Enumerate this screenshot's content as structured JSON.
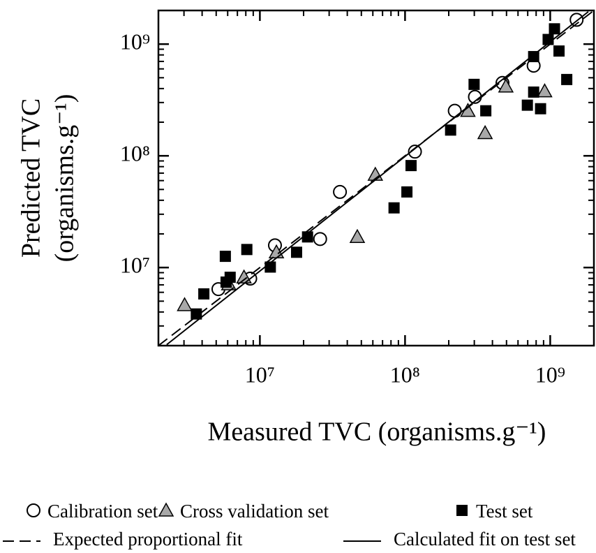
{
  "chart_data": {
    "type": "scatter",
    "xlabel": "Measured TVC (organisms.g⁻¹)",
    "ylabel": [
      "Predicted TVC",
      "(organisms.g⁻¹)"
    ],
    "xlog": true,
    "ylog": true,
    "xlim": [
      2000000,
      2000000000
    ],
    "ylim": [
      2000000,
      2000000000
    ],
    "xticks": [
      {
        "value": 10000000,
        "label": "10⁷"
      },
      {
        "value": 100000000,
        "label": "10⁸"
      },
      {
        "value": 1000000000,
        "label": "10⁹"
      }
    ],
    "yticks": [
      {
        "value": 10000000,
        "label": "10⁷"
      },
      {
        "value": 100000000,
        "label": "10⁸"
      },
      {
        "value": 1000000000,
        "label": "10⁹"
      }
    ],
    "legend": "bottom",
    "series": [
      {
        "name": "Calibration set",
        "marker": "circle",
        "color": "#ffffff",
        "x": [
          5180000,
          8580000,
          12700000,
          26000000,
          35600000,
          117000000,
          220000000,
          303000000,
          469000000,
          769000000,
          1520000000
        ],
        "values": [
          6410000,
          7960000,
          15800000,
          18000000,
          47500000,
          109000000,
          253000000,
          337000000,
          449000000,
          641000000,
          1650000000
        ]
      },
      {
        "name": "Cross validation set",
        "marker": "triangle",
        "color": "#a8a8a8",
        "x": [
          3030000,
          6100000,
          7770000,
          13000000,
          46900000,
          62400000,
          271000000,
          356000000,
          495000000,
          916000000
        ],
        "values": [
          4620000,
          7100000,
          8180000,
          13700000,
          18800000,
          67900000,
          253000000,
          160000000,
          418000000,
          379000000
        ]
      },
      {
        "name": "Test set",
        "marker": "square",
        "color": "#000000",
        "x": [
          3650000,
          4110000,
          5850000,
          5780000,
          6240000,
          8130000,
          11800000,
          17900000,
          21300000,
          84000000,
          103000000,
          110000000,
          206000000,
          299000000,
          360000000,
          696000000,
          769000000,
          769000000,
          858000000,
          968000000,
          1070000000,
          1150000000,
          1300000000
        ],
        "values": [
          3840000,
          5810000,
          7410000,
          12600000,
          8180000,
          14500000,
          10100000,
          13700000,
          18800000,
          34200000,
          47500000,
          81800000,
          170000000,
          436000000,
          253000000,
          284000000,
          372000000,
          773000000,
          264000000,
          1100000000,
          1370000000,
          867000000,
          482000000
        ]
      },
      {
        "name": "Expected proportional fit",
        "line": "dashed",
        "color": "#000000",
        "x": [
          2000000,
          1950000000
        ],
        "values": [
          2000000,
          1950000000
        ]
      },
      {
        "name": "Calculated fit on test set",
        "line": "solid",
        "color": "#000000",
        "x": [
          2280000,
          1830000000
        ],
        "values": [
          2040000,
          1950000000
        ]
      }
    ]
  }
}
